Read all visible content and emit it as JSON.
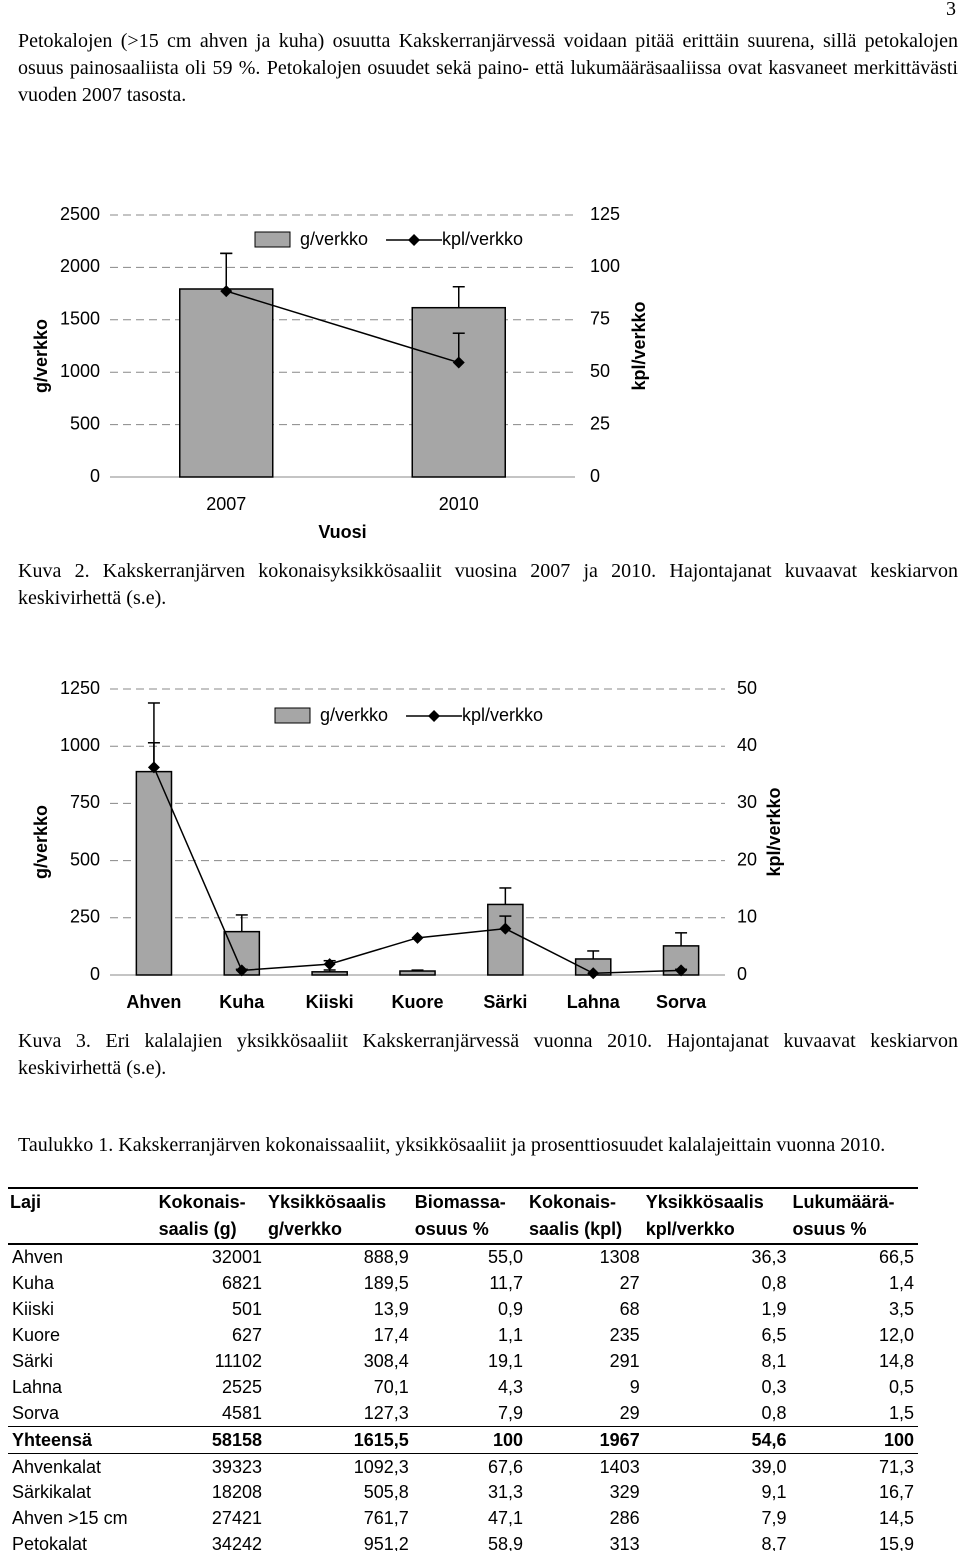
{
  "page_number": "3",
  "paragraph": "Petokalojen (>15 cm ahven ja kuha) osuutta Kakskerranjärvessä voidaan pitää erittäin suurena, sillä petokalojen osuus painosaaliista oli 59 %. Petokalojen osuudet sekä paino- että lukumääräsaaliissa ovat kasvaneet merkittävästi vuoden 2007 tasosta.",
  "chart_data": [
    {
      "type": "combo",
      "categories": [
        "2007",
        "2010"
      ],
      "x_label": "Vuosi",
      "y_label": "g/verkko",
      "y2_label": "kpl/verkko",
      "series": [
        {
          "name": "g/verkko",
          "type": "bar",
          "color": "#a6a6a6",
          "values": [
            1794,
            1615.5
          ],
          "errors": [
            340,
            200
          ]
        },
        {
          "name": "kpl/verkko",
          "type": "line",
          "axis": "y2",
          "color": "#000000",
          "values": [
            88.7,
            54.6
          ],
          "errors": [
            18,
            14
          ]
        }
      ],
      "ylim": [
        0,
        2500
      ],
      "yticks": [
        0,
        500,
        1000,
        1500,
        2000,
        2500
      ],
      "y2lim": [
        0,
        125
      ],
      "y2ticks": [
        0,
        25,
        50,
        75,
        100,
        125
      ],
      "grid": true
    },
    {
      "type": "combo",
      "categories": [
        "Ahven",
        "Kuha",
        "Kiiski",
        "Kuore",
        "Särki",
        "Lahna",
        "Sorva"
      ],
      "y_label": "g/verkko",
      "y2_label": "kpl/verkko",
      "series": [
        {
          "name": "g/verkko",
          "type": "bar",
          "color": "#a6a6a6",
          "values": [
            888.9,
            189.5,
            13.9,
            17.4,
            308.4,
            70.1,
            127.3
          ],
          "errors": [
            300,
            73,
            8,
            4,
            72,
            35,
            57
          ]
        },
        {
          "name": "kpl/verkko",
          "type": "line",
          "axis": "y2",
          "color": "#000000",
          "values": [
            36.3,
            0.8,
            1.9,
            6.5,
            8.1,
            0.3,
            0.8
          ],
          "errors": [
            4.3,
            0.2,
            0.6,
            0,
            2.2,
            0,
            0.2
          ]
        }
      ],
      "ylim": [
        0,
        1250
      ],
      "yticks": [
        0,
        250,
        500,
        750,
        1000,
        1250
      ],
      "y2lim": [
        0,
        50
      ],
      "y2ticks": [
        0,
        10,
        20,
        30,
        40,
        50
      ],
      "grid": true
    }
  ],
  "caption_1": "Kuva 2. Kakskerranjärven kokonaisyksikkösaaliit vuosina 2007 ja 2010. Hajontajanat kuvaavat keskiarvon keskivirhettä (s.e).",
  "caption_2": "Kuva 3. Eri kalalajien yksikkösaaliit Kakskerranjärvessä vuonna 2010. Hajontajanat kuvaavat keskiarvon keskivirhettä (s.e).",
  "table_caption": "Taulukko 1. Kakskerranjärven kokonaissaaliit, yksikkösaaliit ja prosenttiosuudet kalalajeittain vuonna 2010.",
  "table": {
    "header": [
      [
        "Laji"
      ],
      [
        "Kokonais-",
        "saalis (g)"
      ],
      [
        "Yksikkösaalis",
        "g/verkko"
      ],
      [
        "Biomassa-",
        "osuus %"
      ],
      [
        "Kokonais-",
        "saalis (kpl)"
      ],
      [
        "Yksikkösaalis",
        "kpl/verkko"
      ],
      [
        "Lukumäärä-",
        "osuus %"
      ]
    ],
    "rows": [
      [
        "Ahven",
        "32001",
        "888,9",
        "55,0",
        "1308",
        "36,3",
        "66,5"
      ],
      [
        "Kuha",
        "6821",
        "189,5",
        "11,7",
        "27",
        "0,8",
        "1,4"
      ],
      [
        "Kiiski",
        "501",
        "13,9",
        "0,9",
        "68",
        "1,9",
        "3,5"
      ],
      [
        "Kuore",
        "627",
        "17,4",
        "1,1",
        "235",
        "6,5",
        "12,0"
      ],
      [
        "Särki",
        "11102",
        "308,4",
        "19,1",
        "291",
        "8,1",
        "14,8"
      ],
      [
        "Lahna",
        "2525",
        "70,1",
        "4,3",
        "9",
        "0,3",
        "0,5"
      ],
      [
        "Sorva",
        "4581",
        "127,3",
        "7,9",
        "29",
        "0,8",
        "1,5"
      ],
      [
        "Yhteensä",
        "58158",
        "1615,5",
        "100",
        "1967",
        "54,6",
        "100"
      ],
      [
        "Ahvenkalat",
        "39323",
        "1092,3",
        "67,6",
        "1403",
        "39,0",
        "71,3"
      ],
      [
        "Särkikalat",
        "18208",
        "505,8",
        "31,3",
        "329",
        "9,1",
        "16,7"
      ],
      [
        "Ahven >15 cm",
        "27421",
        "761,7",
        "47,1",
        "286",
        "7,9",
        "14,5"
      ],
      [
        "Petokalat",
        "34242",
        "951,2",
        "58,9",
        "313",
        "8,7",
        "15,9"
      ]
    ]
  }
}
